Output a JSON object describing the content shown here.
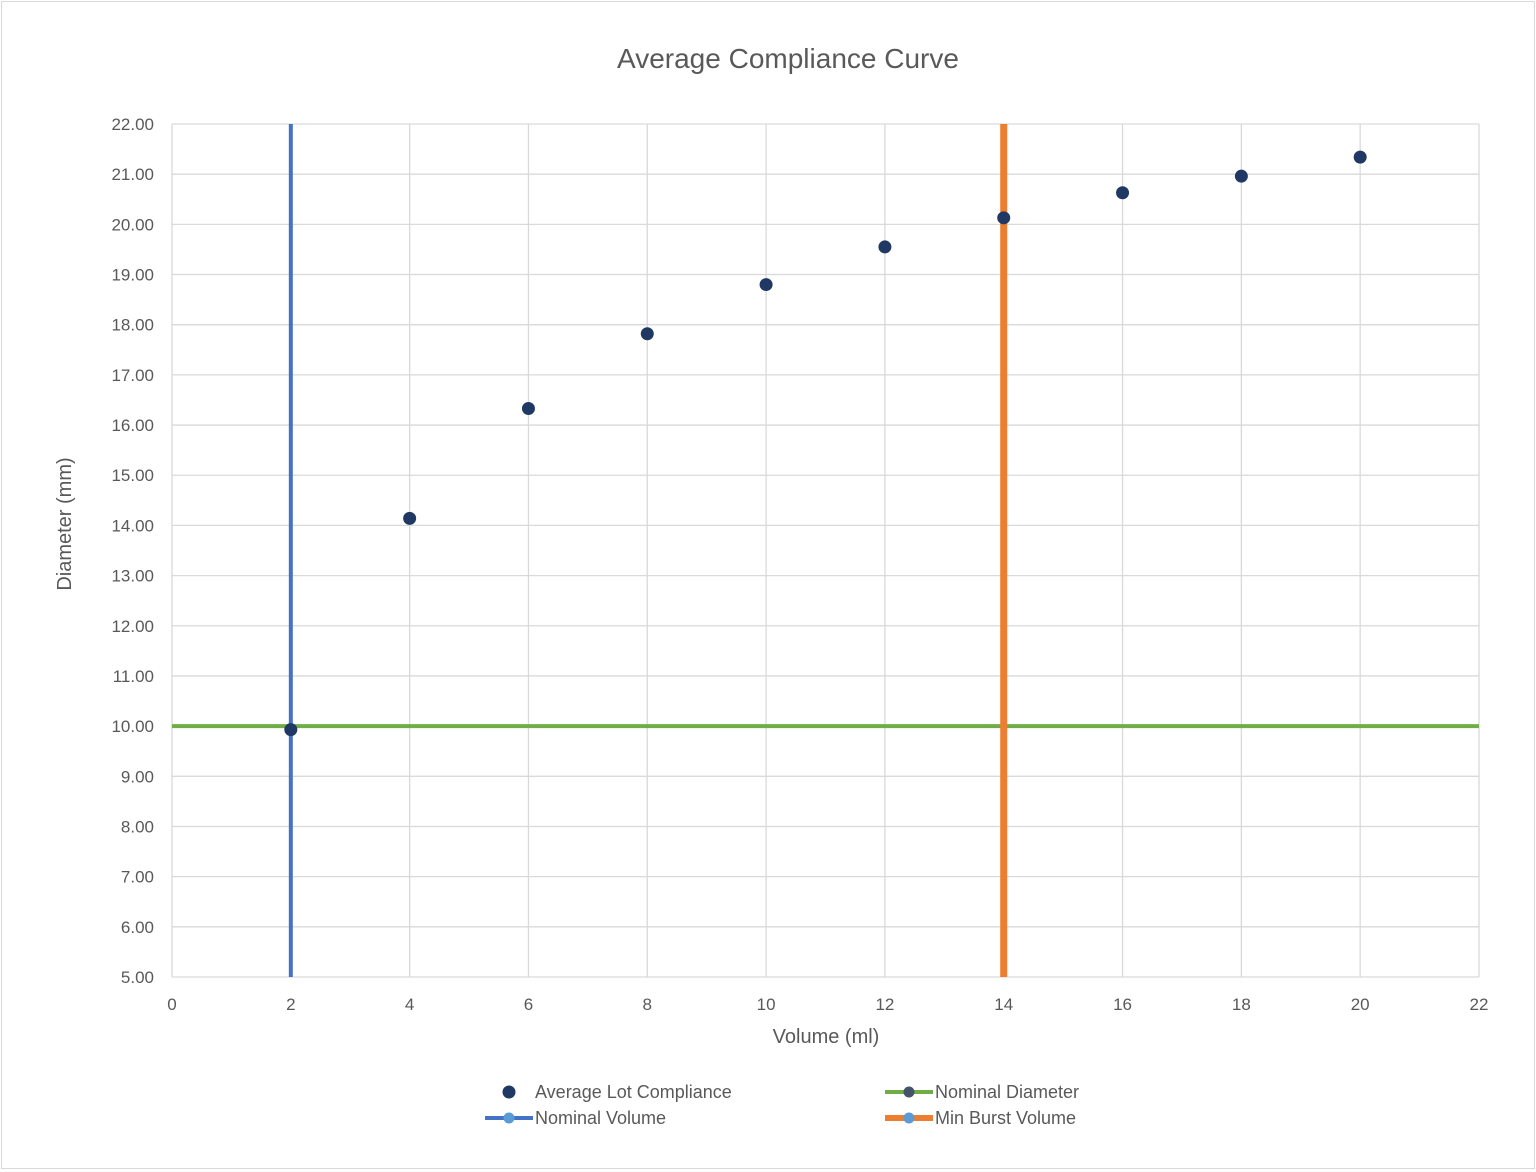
{
  "chart_data": {
    "type": "scatter",
    "title": "Average Compliance Curve",
    "xlabel": "Volume (ml)",
    "ylabel": "Diameter (mm)",
    "xlim": [
      0,
      22
    ],
    "ylim": [
      5,
      22
    ],
    "xticks": [
      0,
      2,
      4,
      6,
      8,
      10,
      12,
      14,
      16,
      18,
      20,
      22
    ],
    "yticks": [
      "5.00",
      "6.00",
      "7.00",
      "8.00",
      "9.00",
      "10.00",
      "11.00",
      "12.00",
      "13.00",
      "14.00",
      "15.00",
      "16.00",
      "17.00",
      "18.00",
      "19.00",
      "20.00",
      "21.00",
      "22.00"
    ],
    "grid": true,
    "legend_position": "bottom",
    "series": [
      {
        "name": "Average Lot Compliance",
        "kind": "points",
        "color": "#203864",
        "x": [
          2,
          4,
          6,
          8,
          10,
          12,
          14,
          16,
          18,
          20
        ],
        "y": [
          9.93,
          14.14,
          16.33,
          17.82,
          18.8,
          19.55,
          20.13,
          20.63,
          20.96,
          21.34
        ]
      },
      {
        "name": "Nominal Diameter",
        "kind": "hline",
        "color": "#70ad47",
        "y": 10
      },
      {
        "name": "Nominal Volume",
        "kind": "vline",
        "color": "#4472c4",
        "x": 2
      },
      {
        "name": "Min Burst Volume",
        "kind": "vline",
        "color": "#ed7d31",
        "x": 14
      }
    ]
  }
}
